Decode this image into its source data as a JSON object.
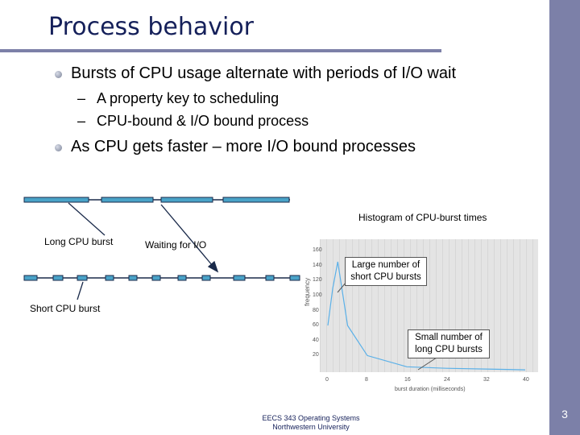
{
  "slide": {
    "title": "Process behavior",
    "page_number": "3",
    "footer_line1": "EECS 343 Operating Systems",
    "footer_line2": "Northwestern University"
  },
  "bullets": [
    {
      "text": "Bursts of CPU usage alternate with periods of I/O wait",
      "subs": [
        "A property key to scheduling",
        "CPU-bound & I/O bound process"
      ]
    },
    {
      "text": "As CPU gets faster – more I/O bound processes",
      "subs": []
    }
  ],
  "diagram": {
    "long_cpu_burst_label": "Long CPU burst",
    "waiting_io_label": "Waiting for I/O",
    "short_cpu_burst_label": "Short CPU burst"
  },
  "histogram": {
    "caption": "Histogram of CPU-burst times",
    "callout_short": "Large number of short CPU bursts",
    "callout_long": "Small number of long CPU bursts",
    "ylabel": "frequency",
    "xlabel": "burst duration (milliseconds)",
    "y_ticks": [
      "160",
      "140",
      "120",
      "100",
      "80",
      "60",
      "40",
      "20"
    ],
    "x_ticks": [
      "0",
      "8",
      "16",
      "24",
      "32",
      "40"
    ]
  },
  "chart_data": {
    "type": "line",
    "title": "Histogram of CPU-burst times",
    "xlabel": "burst duration (milliseconds)",
    "ylabel": "frequency",
    "x": [
      0,
      1,
      2,
      4,
      8,
      16,
      24,
      32,
      40
    ],
    "values": [
      60,
      110,
      145,
      60,
      20,
      5,
      3,
      2,
      1
    ],
    "xlim": [
      0,
      40
    ],
    "ylim": [
      0,
      160
    ]
  }
}
